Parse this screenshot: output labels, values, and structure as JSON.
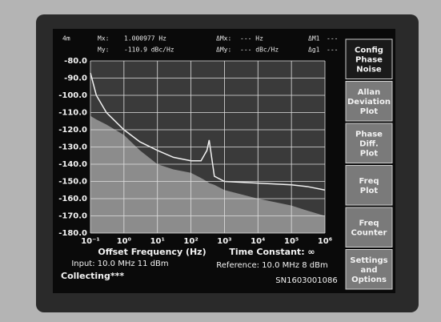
{
  "chart_data": {
    "type": "line",
    "log_x": true,
    "grid": true,
    "background": "#3a3a3a",
    "x": [
      0.1,
      0.15,
      0.3,
      1,
      3,
      10,
      30,
      100,
      200,
      300,
      350,
      500,
      1000,
      10000,
      100000,
      300000,
      1000000
    ],
    "series": [
      {
        "color": "#8c8c8c",
        "fill": true,
        "values": [
          -112,
          -114,
          -117,
          -123,
          -132,
          -140,
          -143,
          -145,
          -148,
          -150,
          -151,
          -152,
          -155,
          -160,
          -164,
          -167,
          -170
        ]
      },
      {
        "color": "#f2f2f2",
        "fill": false,
        "values": [
          -87,
          -100,
          -110,
          -120,
          -127,
          -132,
          -136,
          -138,
          -138,
          -132,
          -126,
          -147,
          -150,
          -151,
          -152,
          -153,
          -155
        ]
      }
    ],
    "xlim": [
      0.1,
      1000000
    ],
    "ylim": [
      -180,
      -80
    ],
    "xticks": [
      {
        "value": 0.1,
        "label": "10⁻¹"
      },
      {
        "value": 1,
        "label": "10⁰"
      },
      {
        "value": 10,
        "label": "10¹"
      },
      {
        "value": 100,
        "label": "10²"
      },
      {
        "value": 1000,
        "label": "10³"
      },
      {
        "value": 10000,
        "label": "10⁴"
      },
      {
        "value": 100000,
        "label": "10⁵"
      },
      {
        "value": 1000000,
        "label": "10⁶"
      }
    ],
    "yticks": [
      {
        "value": -80,
        "label": "-80.0"
      },
      {
        "value": -90,
        "label": "-90.0"
      },
      {
        "value": -100,
        "label": "-100.0"
      },
      {
        "value": -110,
        "label": "-110.0"
      },
      {
        "value": -120,
        "label": "-120.0"
      },
      {
        "value": -130,
        "label": "-130.0"
      },
      {
        "value": -140,
        "label": "-140.0"
      },
      {
        "value": -150,
        "label": "-150.0"
      },
      {
        "value": -160,
        "label": "-160.0"
      },
      {
        "value": -170,
        "label": "-170.0"
      },
      {
        "value": -180,
        "label": "-180.0"
      }
    ],
    "x_label": "Offset Frequency (Hz)"
  },
  "header": {
    "mode": "4m",
    "mx_label": "Mx:",
    "mx_value": "1.000977 Hz",
    "my_label": "My:",
    "my_value": "-110.9 dBc/Hz",
    "dmx_label": "ΔMx:",
    "dmx_value": "--- Hz",
    "dmy_label": "ΔMy:",
    "dmy_value": "--- dBc/Hz",
    "dm1_label": "ΔM1",
    "dm1_value": "---",
    "dg1_label": "Δg1",
    "dg1_value": "---"
  },
  "footer": {
    "time_constant": "Time Constant: ∞",
    "input": "Input: 10.0 MHz 11 dBm",
    "reference": "Reference: 10.0 MHz 8 dBm",
    "status": "Collecting***",
    "serial": "SN1603001086"
  },
  "menu": [
    [
      "Config",
      "Phase",
      "Noise"
    ],
    [
      "Allan",
      "Deviation",
      "Plot"
    ],
    [
      "Phase",
      "Diff.",
      "Plot"
    ],
    [
      "Freq",
      "Plot"
    ],
    [
      "Freq",
      "Counter"
    ],
    [
      "Settings",
      "and",
      "Options"
    ]
  ]
}
